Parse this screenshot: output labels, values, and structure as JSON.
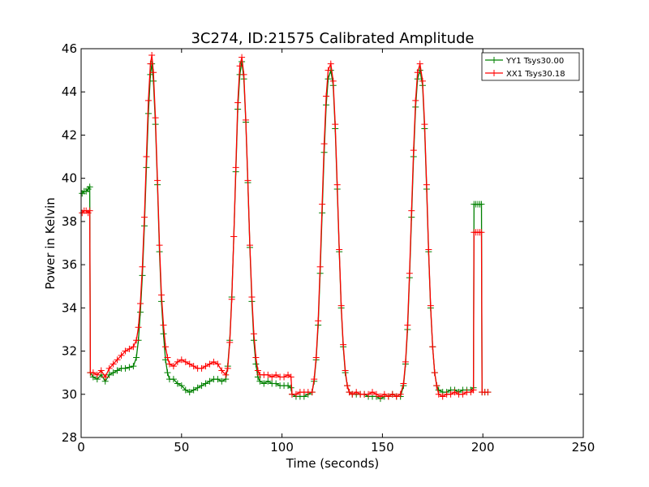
{
  "chart_data": {
    "type": "line",
    "title": "3C274, ID:21575 Calibrated Amplitude",
    "xlabel": "Time (seconds)",
    "ylabel": "Power in Kelvin",
    "xlim": [
      0,
      250
    ],
    "ylim": [
      28,
      46
    ],
    "xticks": [
      0,
      50,
      100,
      150,
      200,
      250
    ],
    "yticks": [
      28,
      30,
      32,
      34,
      36,
      38,
      40,
      42,
      44,
      46
    ],
    "grid": false,
    "legend_position": "top-right",
    "marker": "+",
    "series": [
      {
        "name": "YY1 Tsys30.00",
        "color": "#008000",
        "points": [
          [
            0.5,
            39.3
          ],
          [
            1.5,
            39.4
          ],
          [
            2.5,
            39.4
          ],
          [
            3.5,
            39.5
          ],
          [
            4.3,
            39.6
          ],
          [
            4.6,
            31.0
          ],
          [
            6,
            30.8
          ],
          [
            8,
            30.7
          ],
          [
            10,
            30.9
          ],
          [
            12,
            30.6
          ],
          [
            14,
            30.9
          ],
          [
            16,
            31.0
          ],
          [
            18,
            31.1
          ],
          [
            20,
            31.2
          ],
          [
            22,
            31.2
          ],
          [
            24,
            31.25
          ],
          [
            26,
            31.3
          ],
          [
            27.5,
            31.7
          ],
          [
            28.5,
            32.5
          ],
          [
            29.5,
            33.8
          ],
          [
            30.5,
            35.5
          ],
          [
            31.5,
            37.8
          ],
          [
            32.5,
            40.5
          ],
          [
            33.5,
            43.0
          ],
          [
            34.5,
            44.8
          ],
          [
            35.2,
            45.3
          ],
          [
            36,
            44.5
          ],
          [
            37,
            42.5
          ],
          [
            38,
            39.7
          ],
          [
            39,
            36.6
          ],
          [
            40,
            34.3
          ],
          [
            41,
            32.8
          ],
          [
            42,
            31.6
          ],
          [
            43,
            31.0
          ],
          [
            44,
            30.7
          ],
          [
            46,
            30.7
          ],
          [
            48,
            30.5
          ],
          [
            50,
            30.4
          ],
          [
            52,
            30.2
          ],
          [
            54,
            30.1
          ],
          [
            56,
            30.2
          ],
          [
            58,
            30.3
          ],
          [
            60,
            30.4
          ],
          [
            62,
            30.5
          ],
          [
            64,
            30.6
          ],
          [
            66,
            30.7
          ],
          [
            68,
            30.7
          ],
          [
            70,
            30.6
          ],
          [
            72,
            30.7
          ],
          [
            73,
            31.3
          ],
          [
            74,
            32.5
          ],
          [
            75,
            34.5
          ],
          [
            76,
            37.3
          ],
          [
            77,
            40.3
          ],
          [
            78,
            43.2
          ],
          [
            79,
            44.8
          ],
          [
            80,
            45.4
          ],
          [
            81,
            44.6
          ],
          [
            82,
            42.6
          ],
          [
            83,
            39.8
          ],
          [
            84,
            36.8
          ],
          [
            85,
            34.3
          ],
          [
            86,
            32.5
          ],
          [
            87,
            31.4
          ],
          [
            88,
            30.8
          ],
          [
            89,
            30.6
          ],
          [
            91,
            30.5
          ],
          [
            93,
            30.6
          ],
          [
            95,
            30.5
          ],
          [
            97,
            30.5
          ],
          [
            99,
            30.4
          ],
          [
            101,
            30.4
          ],
          [
            103,
            30.4
          ],
          [
            104.5,
            30.3
          ],
          [
            105,
            30.0
          ],
          [
            107,
            29.9
          ],
          [
            109,
            29.9
          ],
          [
            111,
            29.9
          ],
          [
            113,
            30.0
          ],
          [
            115,
            30.1
          ],
          [
            116,
            30.6
          ],
          [
            117,
            31.6
          ],
          [
            118,
            33.2
          ],
          [
            119,
            35.6
          ],
          [
            120,
            38.4
          ],
          [
            121,
            41.2
          ],
          [
            122,
            43.4
          ],
          [
            123,
            44.6
          ],
          [
            124.3,
            45.0
          ],
          [
            125.5,
            44.3
          ],
          [
            126.5,
            42.3
          ],
          [
            127.5,
            39.5
          ],
          [
            128.5,
            36.6
          ],
          [
            129.5,
            34.0
          ],
          [
            130.5,
            32.2
          ],
          [
            131.5,
            31.0
          ],
          [
            132.5,
            30.4
          ],
          [
            133.5,
            30.1
          ],
          [
            135,
            30.0
          ],
          [
            137,
            30.0
          ],
          [
            139,
            30.0
          ],
          [
            141,
            30.0
          ],
          [
            143,
            29.9
          ],
          [
            145,
            29.9
          ],
          [
            147,
            29.9
          ],
          [
            149,
            29.8
          ],
          [
            151,
            29.9
          ],
          [
            153,
            29.9
          ],
          [
            155,
            30.0
          ],
          [
            157,
            29.9
          ],
          [
            159,
            29.9
          ],
          [
            160.5,
            30.4
          ],
          [
            161.5,
            31.4
          ],
          [
            162.5,
            33.0
          ],
          [
            163.5,
            35.4
          ],
          [
            164.5,
            38.2
          ],
          [
            165.5,
            41.0
          ],
          [
            166.5,
            43.3
          ],
          [
            167.5,
            44.6
          ],
          [
            168.7,
            45.0
          ],
          [
            170,
            44.3
          ],
          [
            171,
            42.3
          ],
          [
            172,
            39.5
          ],
          [
            173,
            36.6
          ],
          [
            174,
            34.0
          ],
          [
            175,
            32.2
          ],
          [
            176,
            31.0
          ],
          [
            177,
            30.4
          ],
          [
            178,
            30.2
          ],
          [
            180,
            30.1
          ],
          [
            182,
            30.1
          ],
          [
            184,
            30.2
          ],
          [
            186,
            30.2
          ],
          [
            188,
            30.1
          ],
          [
            190,
            30.2
          ],
          [
            192,
            30.2
          ],
          [
            194,
            30.2
          ],
          [
            195.3,
            30.3
          ],
          [
            195.6,
            38.8
          ],
          [
            196.5,
            38.8
          ],
          [
            197.5,
            38.8
          ],
          [
            198.5,
            38.8
          ],
          [
            199.3,
            38.8
          ],
          [
            199.6,
            30.1
          ],
          [
            201,
            30.1
          ],
          [
            202.5,
            30.1
          ]
        ]
      },
      {
        "name": "XX1 Tsys30.18",
        "color": "#ff0000",
        "points": [
          [
            0.5,
            38.4
          ],
          [
            1.5,
            38.5
          ],
          [
            2.5,
            38.5
          ],
          [
            3.5,
            38.4
          ],
          [
            4.3,
            38.5
          ],
          [
            4.6,
            31.0
          ],
          [
            6,
            31.0
          ],
          [
            8,
            30.9
          ],
          [
            10,
            31.1
          ],
          [
            12,
            30.8
          ],
          [
            14,
            31.2
          ],
          [
            16,
            31.4
          ],
          [
            18,
            31.6
          ],
          [
            20,
            31.8
          ],
          [
            22,
            32.0
          ],
          [
            24,
            32.1
          ],
          [
            26,
            32.2
          ],
          [
            27.5,
            32.5
          ],
          [
            28.5,
            33.1
          ],
          [
            29.5,
            34.2
          ],
          [
            30.5,
            35.9
          ],
          [
            31.5,
            38.2
          ],
          [
            32.5,
            41.0
          ],
          [
            33.5,
            43.6
          ],
          [
            34.5,
            45.3
          ],
          [
            35.2,
            45.7
          ],
          [
            36,
            44.9
          ],
          [
            37,
            42.8
          ],
          [
            38,
            39.9
          ],
          [
            39,
            36.9
          ],
          [
            40,
            34.6
          ],
          [
            41,
            33.2
          ],
          [
            42,
            32.2
          ],
          [
            43,
            31.7
          ],
          [
            44,
            31.4
          ],
          [
            46,
            31.3
          ],
          [
            48,
            31.5
          ],
          [
            50,
            31.6
          ],
          [
            52,
            31.5
          ],
          [
            54,
            31.4
          ],
          [
            56,
            31.3
          ],
          [
            58,
            31.2
          ],
          [
            60,
            31.2
          ],
          [
            62,
            31.3
          ],
          [
            64,
            31.4
          ],
          [
            66,
            31.5
          ],
          [
            68,
            31.4
          ],
          [
            70,
            31.1
          ],
          [
            72,
            30.9
          ],
          [
            73,
            31.2
          ],
          [
            74,
            32.4
          ],
          [
            75,
            34.4
          ],
          [
            76,
            37.3
          ],
          [
            77,
            40.5
          ],
          [
            78,
            43.5
          ],
          [
            79,
            45.2
          ],
          [
            80,
            45.6
          ],
          [
            81,
            44.8
          ],
          [
            82,
            42.7
          ],
          [
            83,
            39.9
          ],
          [
            84,
            36.9
          ],
          [
            85,
            34.5
          ],
          [
            86,
            32.8
          ],
          [
            87,
            31.7
          ],
          [
            88,
            31.1
          ],
          [
            89,
            30.9
          ],
          [
            91,
            30.9
          ],
          [
            93,
            30.9
          ],
          [
            95,
            30.8
          ],
          [
            97,
            30.9
          ],
          [
            99,
            30.8
          ],
          [
            101,
            30.8
          ],
          [
            103,
            30.9
          ],
          [
            104.5,
            30.8
          ],
          [
            105,
            30.0
          ],
          [
            107,
            30.0
          ],
          [
            109,
            30.1
          ],
          [
            111,
            30.1
          ],
          [
            113,
            30.1
          ],
          [
            115,
            30.1
          ],
          [
            116,
            30.7
          ],
          [
            117,
            31.7
          ],
          [
            118,
            33.4
          ],
          [
            119,
            35.9
          ],
          [
            120,
            38.8
          ],
          [
            121,
            41.6
          ],
          [
            122,
            43.8
          ],
          [
            123,
            45.0
          ],
          [
            124.3,
            45.3
          ],
          [
            125.5,
            44.5
          ],
          [
            126.5,
            42.5
          ],
          [
            127.5,
            39.7
          ],
          [
            128.5,
            36.7
          ],
          [
            129.5,
            34.1
          ],
          [
            130.5,
            32.3
          ],
          [
            131.5,
            31.1
          ],
          [
            132.5,
            30.4
          ],
          [
            133.5,
            30.1
          ],
          [
            135,
            30.0
          ],
          [
            137,
            30.1
          ],
          [
            139,
            30.0
          ],
          [
            141,
            30.0
          ],
          [
            143,
            30.0
          ],
          [
            145,
            30.1
          ],
          [
            147,
            30.0
          ],
          [
            149,
            29.9
          ],
          [
            151,
            30.0
          ],
          [
            153,
            29.9
          ],
          [
            155,
            30.0
          ],
          [
            157,
            29.9
          ],
          [
            159,
            30.0
          ],
          [
            160.5,
            30.5
          ],
          [
            161.5,
            31.5
          ],
          [
            162.5,
            33.2
          ],
          [
            163.5,
            35.6
          ],
          [
            164.5,
            38.5
          ],
          [
            165.5,
            41.3
          ],
          [
            166.5,
            43.6
          ],
          [
            167.5,
            44.9
          ],
          [
            168.7,
            45.3
          ],
          [
            170,
            44.5
          ],
          [
            171,
            42.5
          ],
          [
            172,
            39.7
          ],
          [
            173,
            36.7
          ],
          [
            174,
            34.1
          ],
          [
            175,
            32.2
          ],
          [
            176,
            31.0
          ],
          [
            177,
            30.4
          ],
          [
            178,
            30.0
          ],
          [
            180,
            29.9
          ],
          [
            182,
            30.0
          ],
          [
            184,
            30.0
          ],
          [
            186,
            30.1
          ],
          [
            188,
            30.0
          ],
          [
            190,
            30.0
          ],
          [
            192,
            30.1
          ],
          [
            194,
            30.1
          ],
          [
            195.3,
            30.2
          ],
          [
            195.6,
            37.5
          ],
          [
            196.5,
            37.5
          ],
          [
            197.5,
            37.5
          ],
          [
            198.5,
            37.5
          ],
          [
            199.3,
            37.5
          ],
          [
            199.6,
            30.1
          ],
          [
            201,
            30.1
          ],
          [
            202.5,
            30.1
          ]
        ]
      }
    ]
  }
}
